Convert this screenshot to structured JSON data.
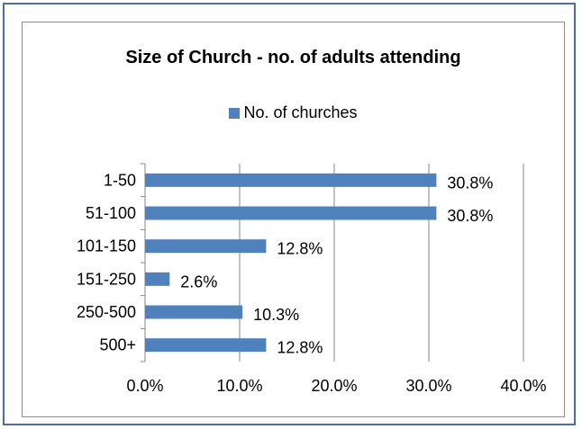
{
  "chart_data": {
    "type": "bar",
    "orientation": "horizontal",
    "title": "Size of Church - no. of adults attending",
    "categories": [
      "1-50",
      "51-100",
      "101-150",
      "151-250",
      "250-500",
      "500+"
    ],
    "series": [
      {
        "name": "No. of churches",
        "values": [
          30.8,
          30.8,
          12.8,
          2.6,
          10.3,
          12.8
        ],
        "labels": [
          "30.8%",
          "30.8%",
          "12.8%",
          "2.6%",
          "10.3%",
          "12.8%"
        ]
      }
    ],
    "xlim": [
      0,
      40
    ],
    "xticks": [
      0,
      10,
      20,
      30,
      40
    ],
    "xtick_labels": [
      "0.0%",
      "10.0%",
      "20.0%",
      "30.0%",
      "40.0%"
    ],
    "grid": true,
    "legend": "top",
    "colors": {
      "bar": "#4f81bd",
      "grid": "#868686",
      "frame": "#4a6fa5"
    }
  }
}
